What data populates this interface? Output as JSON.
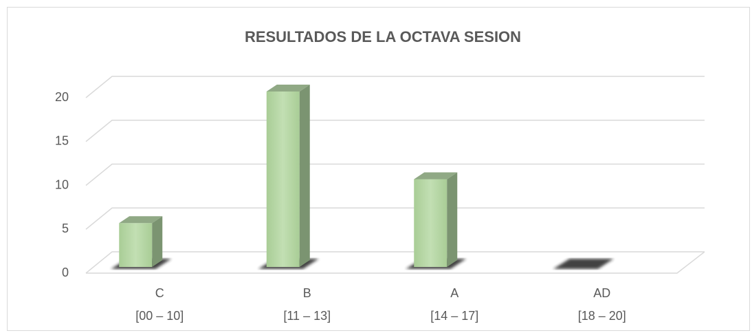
{
  "chart_data": {
    "type": "bar",
    "title": "RESULTADOS DE LA OCTAVA SESION",
    "categories": [
      [
        "C",
        "[00 – 10]"
      ],
      [
        "B",
        "[11 – 13]"
      ],
      [
        "A",
        "[14 – 17]"
      ],
      [
        "AD",
        "[18 – 20]"
      ]
    ],
    "values": [
      5,
      20,
      10,
      0
    ],
    "color": "#b5d5a3",
    "ylim": [
      0,
      20
    ],
    "yticks": [
      0,
      5,
      10,
      15,
      20
    ],
    "grid": true
  }
}
